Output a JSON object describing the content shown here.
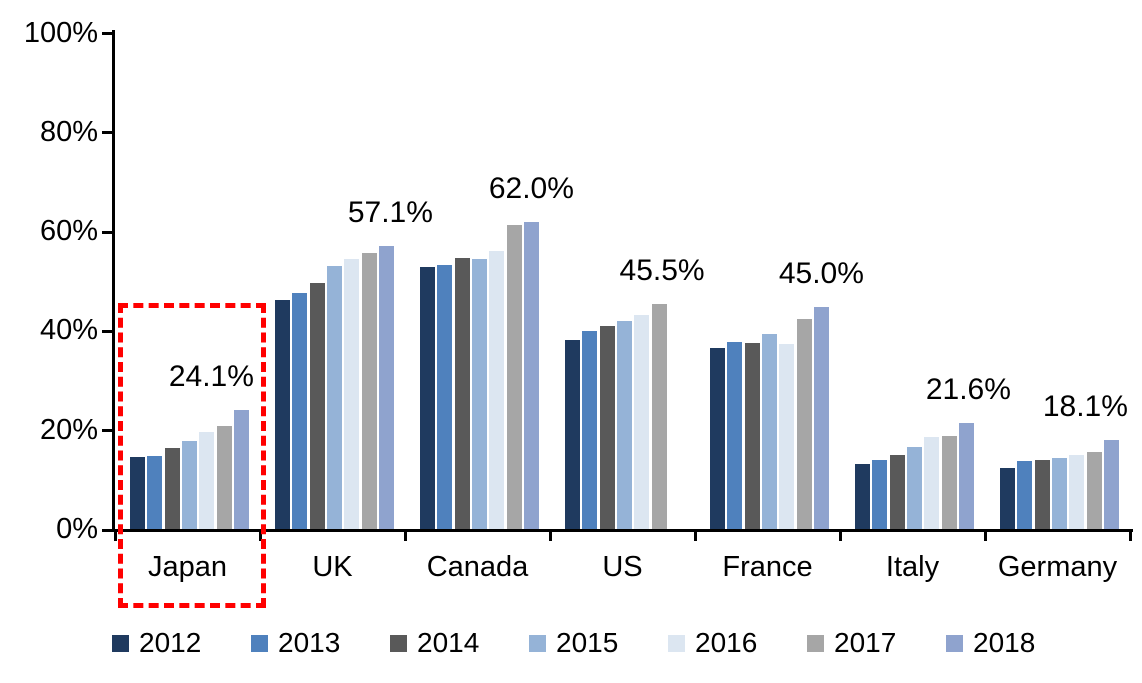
{
  "chart_data": {
    "type": "bar",
    "title": "",
    "categories": [
      "Japan",
      "UK",
      "Canada",
      "US",
      "France",
      "Italy",
      "Germany"
    ],
    "series": [
      {
        "name": "2012",
        "color": "#1F3A5F",
        "values": [
          14.8,
          46.4,
          53.0,
          38.2,
          36.6,
          13.2,
          12.5
        ]
      },
      {
        "name": "2013",
        "color": "#4F81BD",
        "values": [
          15.0,
          47.7,
          53.4,
          40.0,
          37.8,
          14.1,
          13.9
        ]
      },
      {
        "name": "2014",
        "color": "#595959",
        "values": [
          16.6,
          49.7,
          54.8,
          41.0,
          37.6,
          15.2,
          14.1
        ]
      },
      {
        "name": "2015",
        "color": "#95B3D7",
        "values": [
          18.0,
          53.2,
          54.5,
          42.1,
          39.4,
          16.7,
          14.6
        ]
      },
      {
        "name": "2016",
        "color": "#DCE6F1",
        "values": [
          19.8,
          54.6,
          56.1,
          43.4,
          37.5,
          18.8,
          15.1
        ]
      },
      {
        "name": "2017",
        "color": "#A6A6A6",
        "values": [
          21.0,
          55.7,
          61.5,
          45.5,
          42.4,
          19.0,
          15.8
        ]
      },
      {
        "name": "2018",
        "color": "#8FA3CE",
        "values": [
          24.1,
          57.1,
          62.0,
          null,
          45.0,
          21.6,
          18.1
        ]
      }
    ],
    "annotations": [
      {
        "category": "Japan",
        "text": "24.1%"
      },
      {
        "category": "UK",
        "text": "57.1%"
      },
      {
        "category": "Canada",
        "text": "62.0%"
      },
      {
        "category": "US",
        "text": "45.5%"
      },
      {
        "category": "France",
        "text": "45.0%"
      },
      {
        "category": "Italy",
        "text": "21.6%"
      },
      {
        "category": "Germany",
        "text": "18.1%"
      }
    ],
    "y_axis": {
      "tick_labels": [
        "0%",
        "20%",
        "40%",
        "60%",
        "80%",
        "100%"
      ],
      "tick_values": [
        0,
        20,
        40,
        60,
        80,
        100
      ],
      "min": 0,
      "max": 100,
      "unit": "%"
    },
    "legend": {
      "position": "bottom",
      "entries": [
        "2012",
        "2013",
        "2014",
        "2015",
        "2016",
        "2017",
        "2018"
      ]
    },
    "highlight": {
      "category": "Japan",
      "shape": "dashed-rectangle",
      "color": "#FF0000"
    },
    "grid": false
  }
}
